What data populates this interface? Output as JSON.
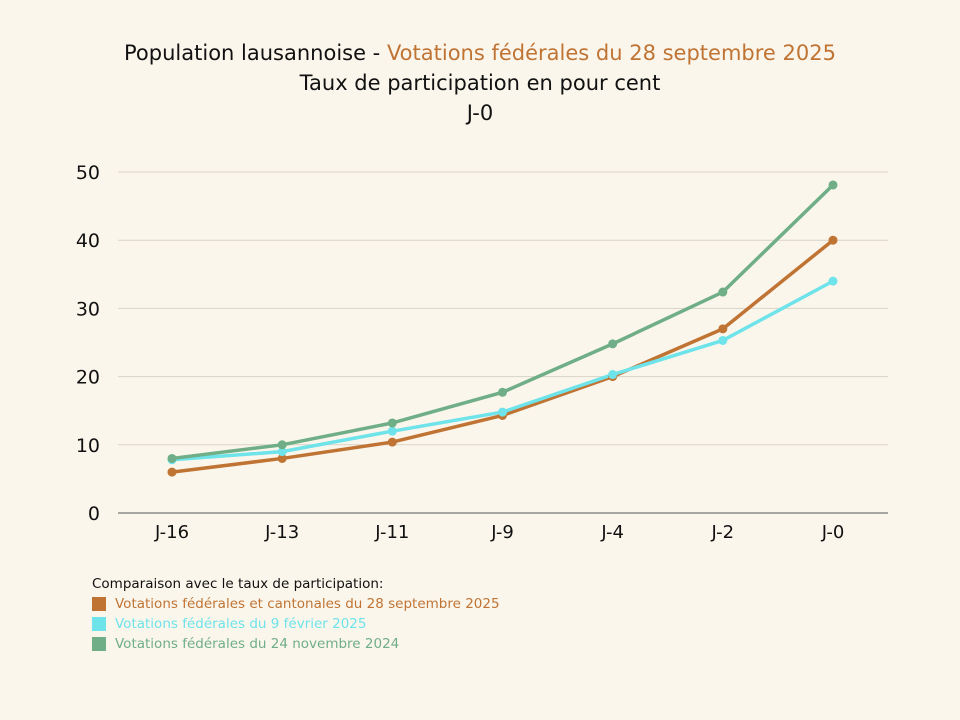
{
  "title": {
    "line1_prefix": "Population lausannoise - ",
    "line1_highlight": "Votations fédérales du 28 septembre 2025",
    "line2": "Taux de participation en pour cent",
    "line3": "J-0"
  },
  "chart_data": {
    "type": "line",
    "title": "Taux de participation en pour cent",
    "categories": [
      "J-16",
      "J-13",
      "J-11",
      "J-9",
      "J-4",
      "J-2",
      "J-0"
    ],
    "ylim": [
      0,
      50
    ],
    "yticks": [
      0,
      10,
      20,
      30,
      40,
      50
    ],
    "grid": true,
    "xlabel": "",
    "ylabel": "",
    "series": [
      {
        "name": "Votations fédérales et cantonales du 28 septembre 2025",
        "color": "#c07434",
        "values": [
          6,
          8,
          10.4,
          14.3,
          20,
          27,
          40
        ]
      },
      {
        "name": "Votations fédérales du 9 février 2025",
        "color": "#6ee3ea",
        "values": [
          7.8,
          9,
          12,
          14.8,
          20.3,
          25.3,
          34
        ]
      },
      {
        "name": "Votations fédérales du 24 novembre 2024",
        "color": "#6fae86",
        "values": [
          8,
          10,
          13.2,
          17.7,
          24.8,
          32.4,
          48.1
        ]
      }
    ]
  },
  "legend": {
    "heading": "Comparaison avec le taux de participation:",
    "items": [
      {
        "label": "Votations fédérales et cantonales du 28 septembre 2025",
        "color": "#c07434"
      },
      {
        "label": "Votations fédérales du 9 février 2025",
        "color": "#6ee3ea"
      },
      {
        "label": "Votations fédérales du 24 novembre 2024",
        "color": "#6fae86"
      }
    ]
  }
}
